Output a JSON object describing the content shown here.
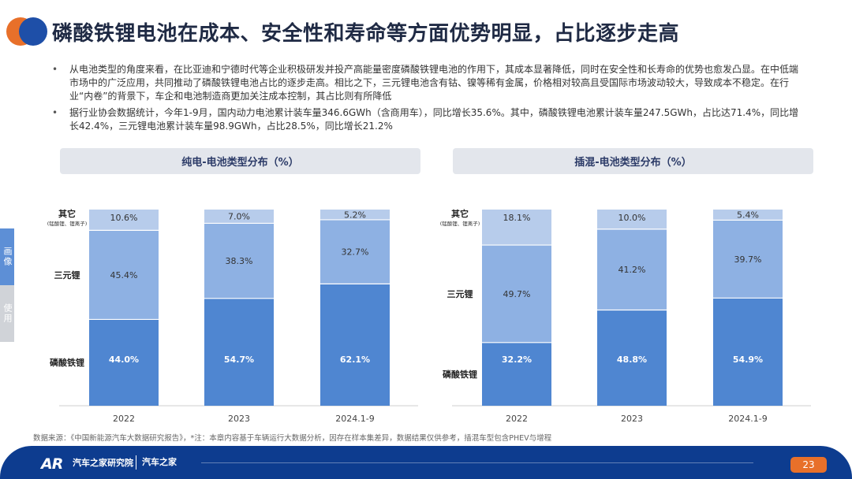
{
  "title": "磷酸铁锂电池在成本、安全性和寿命等方面优势明显，占比逐步走高",
  "bullets": [
    "从电池类型的角度来看，在比亚迪和宁德时代等企业积极研发并投产高能量密度磷酸铁锂电池的作用下，其成本显著降低，同时在安全性和长寿命的优势也愈发凸显。在中低端市场中的广泛应用，共同推动了磷酸铁锂电池占比的逐步走高。相比之下，三元锂电池含有钴、镍等稀有金属，价格相对较高且受国际市场波动较大，导致成本不稳定。在行业“内卷”的背景下，车企和电池制造商更加关注成本控制，其占比则有所降低",
    "据行业协会数据统计，今年1-9月，国内动力电池累计装车量346.6GWh（含商用车），同比增长35.6%。其中，磷酸铁锂电池累计装车量247.5GWh，占比达71.4%，同比增长42.4%，三元锂电池累计装车量98.9GWh，占比28.5%，同比增长21.2%"
  ],
  "side_tabs": [
    "画像",
    "使用"
  ],
  "chart_data": [
    {
      "type": "bar",
      "stacked": true,
      "title": "纯电-电池类型分布（%）",
      "categories": [
        "2022",
        "2023",
        "2024.1-9"
      ],
      "series": [
        {
          "name": "磷酸铁锂",
          "values": [
            44.0,
            54.7,
            62.1
          ],
          "color": "#4f86d1"
        },
        {
          "name": "三元锂",
          "values": [
            45.4,
            38.3,
            32.7
          ],
          "color": "#8eb1e3"
        },
        {
          "name": "其它",
          "note": "(锰酸锂、锂离子)",
          "values": [
            10.6,
            7.0,
            5.2
          ],
          "color": "#b7cceb"
        }
      ],
      "labels": [
        [
          "44.0%",
          "54.7%",
          "62.1%"
        ],
        [
          "45.4%",
          "38.3%",
          "32.7%"
        ],
        [
          "10.6%",
          "7.0%",
          "5.2%"
        ]
      ],
      "ylim": [
        0,
        100
      ]
    },
    {
      "type": "bar",
      "stacked": true,
      "title": "插混-电池类型分布（%）",
      "categories": [
        "2022",
        "2023",
        "2024.1-9"
      ],
      "series": [
        {
          "name": "磷酸铁锂",
          "values": [
            32.2,
            48.8,
            54.9
          ],
          "color": "#4f86d1"
        },
        {
          "name": "三元锂",
          "values": [
            49.7,
            41.2,
            39.7
          ],
          "color": "#8eb1e3"
        },
        {
          "name": "其它",
          "note": "(锰酸锂、锂离子)",
          "values": [
            18.1,
            10.0,
            5.4
          ],
          "color": "#b7cceb"
        }
      ],
      "labels": [
        [
          "32.2%",
          "48.8%",
          "54.9%"
        ],
        [
          "49.7%",
          "41.2%",
          "39.7%"
        ],
        [
          "18.1%",
          "10.0%",
          "5.4%"
        ]
      ],
      "ylim": [
        0,
        100
      ]
    }
  ],
  "source": "数据来源：《中国新能源汽车大数据研究报告》，*注：本章内容基于车辆运行大数据分析，因存在样本集差异，数据结果仅供参考，插混车型包含PHEV与增程",
  "footer": {
    "logo": "AR",
    "brand": "汽车之家研究院",
    "brand2": "汽车之家",
    "page_number": "23"
  },
  "colors": {
    "accent_orange": "#e8702a",
    "brand_blue": "#0d3c8f",
    "lfp": "#4f86d1",
    "ncm": "#8eb1e3",
    "other": "#b7cceb"
  }
}
